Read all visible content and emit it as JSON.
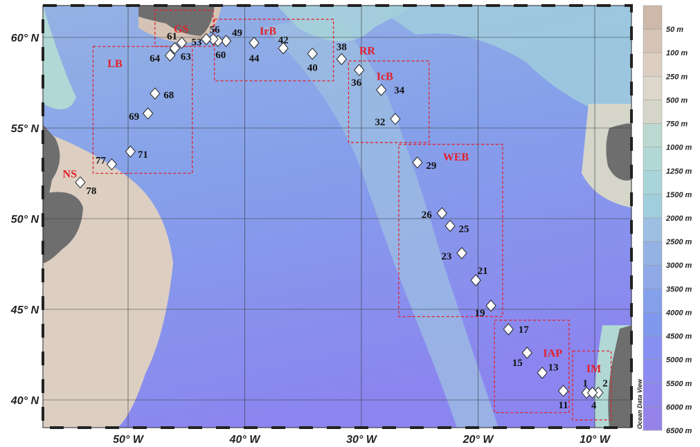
{
  "map": {
    "projection_extent": {
      "lon": [
        -57.3,
        -6.7
      ],
      "lat": [
        38.5,
        62
      ]
    },
    "lon_ticks": [
      {
        "value": -50,
        "label": "50° W"
      },
      {
        "value": -40,
        "label": "40° W"
      },
      {
        "value": -30,
        "label": "30° W"
      },
      {
        "value": -20,
        "label": "20° W"
      },
      {
        "value": -10,
        "label": "10° W"
      }
    ],
    "lat_ticks": [
      {
        "value": 60,
        "label": "60° N"
      },
      {
        "value": 55,
        "label": "55° N"
      },
      {
        "value": 50,
        "label": "50° N"
      },
      {
        "value": 45,
        "label": "45° N"
      },
      {
        "value": 40,
        "label": "40° N"
      }
    ],
    "stations": [
      {
        "id": "1",
        "lon": -10.7,
        "lat": 40.4
      },
      {
        "id": "2",
        "lon": -9.7,
        "lat": 40.4
      },
      {
        "id": "4",
        "lon": -10.2,
        "lat": 40.4
      },
      {
        "id": "11",
        "lon": -12.7,
        "lat": 40.5
      },
      {
        "id": "13",
        "lon": -14.5,
        "lat": 41.5
      },
      {
        "id": "15",
        "lon": -15.8,
        "lat": 42.6
      },
      {
        "id": "17",
        "lon": -17.4,
        "lat": 43.9
      },
      {
        "id": "19",
        "lon": -18.9,
        "lat": 45.2
      },
      {
        "id": "21",
        "lon": -20.2,
        "lat": 46.6
      },
      {
        "id": "23",
        "lon": -21.4,
        "lat": 48.1
      },
      {
        "id": "25",
        "lon": -22.4,
        "lat": 49.6
      },
      {
        "id": "26",
        "lon": -23.1,
        "lat": 50.3
      },
      {
        "id": "29",
        "lon": -25.2,
        "lat": 53.1
      },
      {
        "id": "32",
        "lon": -27.1,
        "lat": 55.5
      },
      {
        "id": "34",
        "lon": -28.3,
        "lat": 57.1
      },
      {
        "id": "36",
        "lon": -30.2,
        "lat": 58.2
      },
      {
        "id": "38",
        "lon": -31.7,
        "lat": 58.8
      },
      {
        "id": "40",
        "lon": -34.2,
        "lat": 59.1
      },
      {
        "id": "42",
        "lon": -36.7,
        "lat": 59.4
      },
      {
        "id": "44",
        "lon": -39.2,
        "lat": 59.7
      },
      {
        "id": "49",
        "lon": -41.6,
        "lat": 59.8
      },
      {
        "id": "60",
        "lon": -42.3,
        "lat": 59.8
      },
      {
        "id": "56",
        "lon": -42.7,
        "lat": 59.9
      },
      {
        "id": "53",
        "lon": -43.3,
        "lat": 59.9
      },
      {
        "id": "61",
        "lon": -45.4,
        "lat": 59.7
      },
      {
        "id": "63",
        "lon": -46.0,
        "lat": 59.4
      },
      {
        "id": "64",
        "lon": -46.4,
        "lat": 59.0
      },
      {
        "id": "68",
        "lon": -47.7,
        "lat": 56.9
      },
      {
        "id": "69",
        "lon": -48.3,
        "lat": 55.8
      },
      {
        "id": "71",
        "lon": -49.8,
        "lat": 53.7
      },
      {
        "id": "77",
        "lon": -51.4,
        "lat": 53.0
      },
      {
        "id": "78",
        "lon": -54.1,
        "lat": 52.0
      }
    ],
    "regions": [
      {
        "label": "LB",
        "lon": [
          -53.0,
          -44.5
        ],
        "lat": [
          52.5,
          59.5
        ]
      },
      {
        "label": "GS",
        "lon": [
          -47.7,
          -42.7
        ],
        "lat": [
          59.5,
          61.5
        ]
      },
      {
        "label": "IrB",
        "lon": [
          -42.6,
          -32.4
        ],
        "lat": [
          57.6,
          61.0
        ]
      },
      {
        "label": "IcB",
        "lon": [
          -31.1,
          -24.2
        ],
        "lat": [
          54.2,
          58.7
        ]
      },
      {
        "label": "WEB",
        "lon": [
          -26.8,
          -17.9
        ],
        "lat": [
          44.6,
          54.1
        ]
      },
      {
        "label": "IAP",
        "lon": [
          -18.6,
          -12.2
        ],
        "lat": [
          39.3,
          44.4
        ]
      },
      {
        "label": "IM",
        "lon": [
          -11.9,
          -8.6
        ],
        "lat": [
          38.9,
          42.7
        ]
      }
    ],
    "text_labels": [
      {
        "label": "NS",
        "lon": -55.0,
        "lat": 52.5
      },
      {
        "label": "RR",
        "lon": -29.5,
        "lat": 59.3
      }
    ],
    "region_color": "#e3202a",
    "land_color": "#6e6e6e"
  },
  "legend": {
    "watermark": "Ocean Data View",
    "levels": [
      {
        "label": "50 m",
        "color": "#cdb8a9"
      },
      {
        "label": "100 m",
        "color": "#d5c3b5"
      },
      {
        "label": "250 m",
        "color": "#dccfc2"
      },
      {
        "label": "500 m",
        "color": "#dcd6cb"
      },
      {
        "label": "750 m",
        "color": "#d5d6c9"
      },
      {
        "label": "1000 m",
        "color": "#bcd9d1"
      },
      {
        "label": "1250 m",
        "color": "#b1d8d5"
      },
      {
        "label": "1500 m",
        "color": "#a9d5da"
      },
      {
        "label": "2000 m",
        "color": "#a1cedc"
      },
      {
        "label": "2500 m",
        "color": "#9dbfe2"
      },
      {
        "label": "3000 m",
        "color": "#95b2e4"
      },
      {
        "label": "3500 m",
        "color": "#8fa9e6"
      },
      {
        "label": "4000 m",
        "color": "#85a0ea"
      },
      {
        "label": "4500 m",
        "color": "#7f98ee"
      },
      {
        "label": "5000 m",
        "color": "#8590f1"
      },
      {
        "label": "5500 m",
        "color": "#8b8bf0"
      },
      {
        "label": "6000 m",
        "color": "#8f86ee"
      },
      {
        "label": "6500 m",
        "color": "#9683ea"
      }
    ]
  }
}
